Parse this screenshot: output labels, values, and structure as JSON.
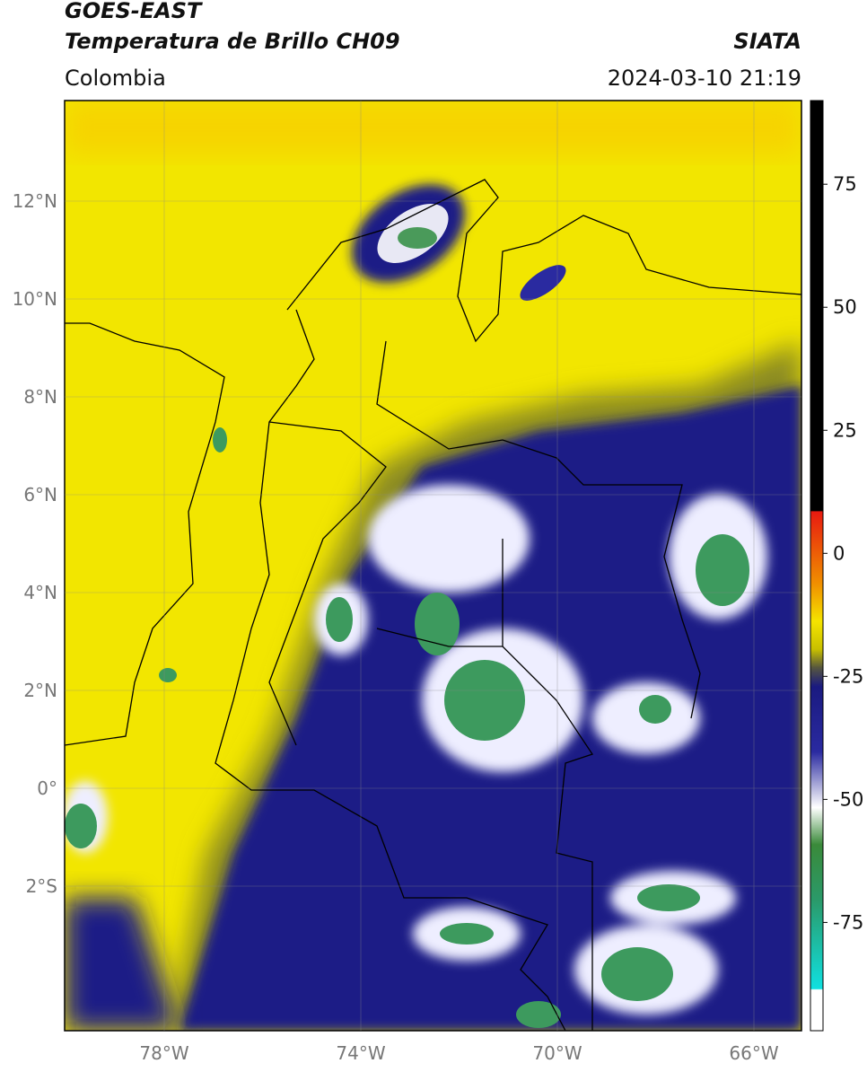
{
  "header": {
    "product": "GOES-EAST",
    "title": "Temperatura de Brillo CH09",
    "org": "SIATA",
    "region": "Colombia",
    "timestamp": "2024-03-10 21:19"
  },
  "map": {
    "lat_labels": [
      "12°N",
      "10°N",
      "8°N",
      "6°N",
      "4°N",
      "2°N",
      "0°",
      "2°S"
    ],
    "lon_labels": [
      "78°W",
      "74°W",
      "70°W",
      "66°W"
    ]
  },
  "colorbar": {
    "lim": [
      -97,
      92
    ],
    "ticks": [
      75,
      50,
      25,
      0,
      -25,
      -50,
      -75
    ]
  }
}
